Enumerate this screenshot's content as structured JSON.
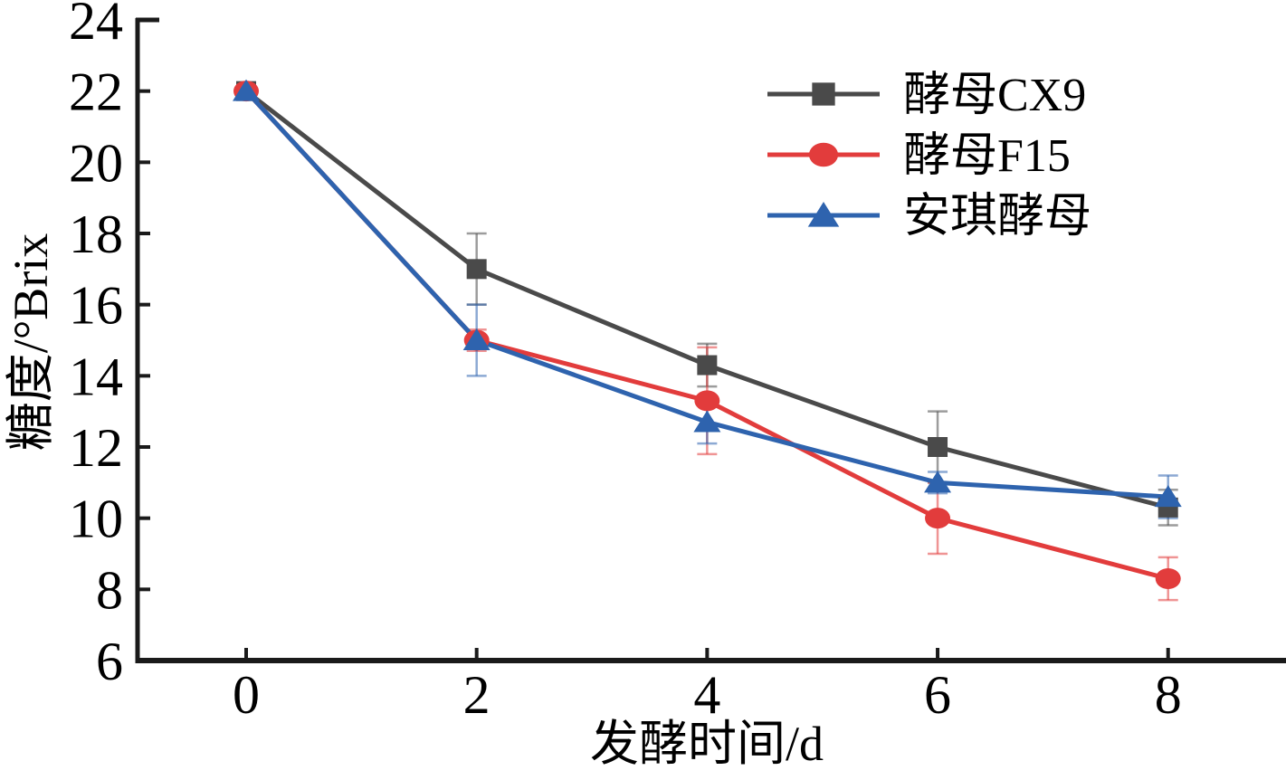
{
  "figure": {
    "background": "#ffffff",
    "axis_color": "#1a1a1a",
    "text_color": "#000000"
  },
  "chart_data": {
    "type": "line",
    "title": "",
    "xlabel": "发酵时间/d",
    "ylabel": "糖度/°Brix",
    "x": [
      0,
      2,
      4,
      6,
      8
    ],
    "x_tick_labels": [
      "0",
      "2",
      "4",
      "6",
      "8"
    ],
    "y_ticks": [
      6,
      8,
      10,
      12,
      14,
      16,
      18,
      20,
      22,
      24
    ],
    "ylim": [
      6,
      24
    ],
    "xlim_px_note": "categories evenly spaced, axis extends beyond last tick",
    "grid": false,
    "legend_position": "upper-right-inside",
    "series": [
      {
        "name": "酵母CX9",
        "color": "#4a4a4a",
        "marker": "square",
        "values": [
          22.0,
          17.0,
          14.3,
          12.0,
          10.3
        ],
        "errors": [
          0.2,
          1.0,
          0.6,
          1.0,
          0.5
        ]
      },
      {
        "name": "酵母F15",
        "color": "#e23c3c",
        "marker": "circle",
        "values": [
          22.0,
          15.0,
          13.3,
          10.0,
          8.3
        ],
        "errors": [
          0.2,
          0.3,
          1.5,
          1.0,
          0.6
        ]
      },
      {
        "name": "安琪酵母",
        "color": "#2e63ae",
        "marker": "triangle",
        "values": [
          22.0,
          15.0,
          12.7,
          11.0,
          10.6
        ],
        "errors": [
          0.2,
          1.0,
          0.6,
          0.3,
          0.6
        ]
      }
    ]
  }
}
